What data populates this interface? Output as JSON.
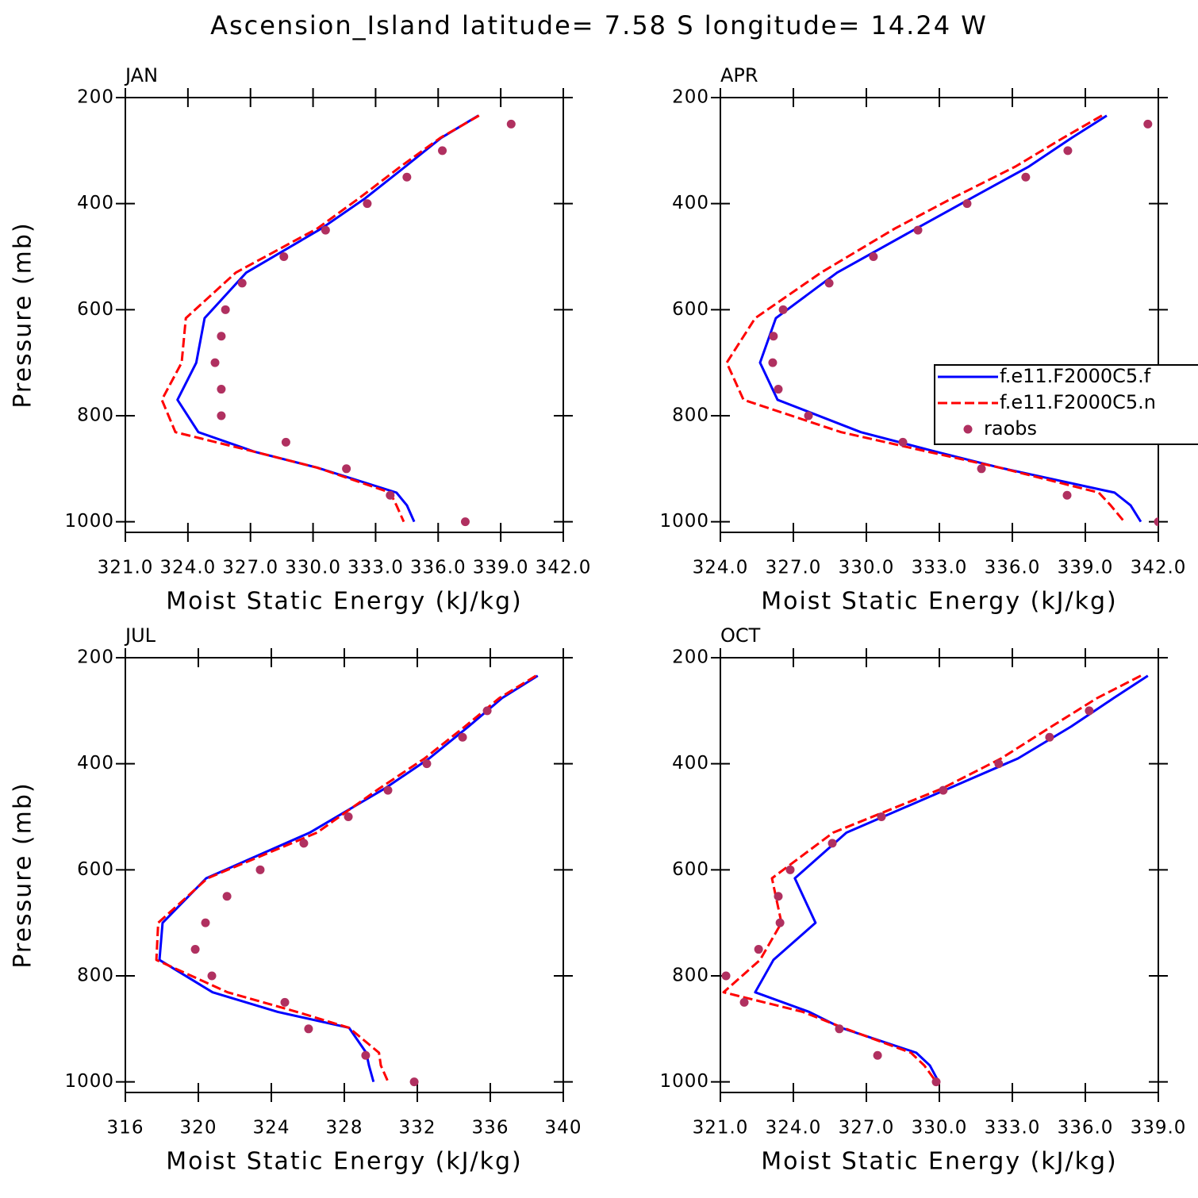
{
  "title": "Ascension_Island  latitude= 7.58 S longitude= 14.24 W",
  "chart_data": [
    {
      "type": "line",
      "title": "JAN",
      "xlabel": "Moist Static Energy (kJ/kg)",
      "ylabel": "Pressure (mb)",
      "xlim": [
        321,
        342
      ],
      "xticks": [
        {
          "value": 321,
          "label": "321.0"
        },
        {
          "value": 324,
          "label": "324.0"
        },
        {
          "value": 327,
          "label": "327.0"
        },
        {
          "value": 330,
          "label": "330.0"
        },
        {
          "value": 333,
          "label": "333.0"
        },
        {
          "value": 336,
          "label": "336.0"
        },
        {
          "value": 339,
          "label": "339.0"
        },
        {
          "value": 342,
          "label": "342.0"
        }
      ],
      "ylim": [
        1020,
        200
      ],
      "yticks": [
        200,
        400,
        600,
        800,
        1000
      ],
      "series": [
        {
          "color": "#0000ff",
          "mode": "solid",
          "x": [
            337.93,
            336.14,
            334.43,
            332.5,
            330.4,
            326.8,
            324.8,
            324.4,
            323.5,
            324.5,
            327.2,
            330.2,
            334.0,
            334.5,
            334.85
          ],
          "y": [
            234,
            276,
            330,
            390,
            447,
            530,
            616,
            700,
            770,
            831,
            868,
            898,
            945,
            969,
            1000
          ]
        },
        {
          "color": "#ff0000",
          "mode": "dashed",
          "x": [
            337.96,
            336.1,
            334.2,
            332.2,
            330.2,
            326.3,
            323.9,
            323.7,
            322.75,
            323.4,
            327.2,
            330.2,
            333.7,
            334.0,
            334.35
          ],
          "y": [
            234,
            276,
            330,
            390,
            447,
            530,
            616,
            700,
            770,
            831,
            868,
            898,
            945,
            969,
            1000
          ]
        },
        {
          "color": "#b03060",
          "mode": "markers",
          "x": [
            339.5,
            336.2,
            334.5,
            332.6,
            330.6,
            328.6,
            326.6,
            325.8,
            325.6,
            325.3,
            325.6,
            325.6,
            328.7,
            331.6,
            333.7,
            337.3
          ],
          "y": [
            250,
            300,
            350,
            400,
            450,
            500,
            550,
            600,
            650,
            700,
            750,
            800,
            850,
            900,
            950,
            1000
          ]
        }
      ]
    },
    {
      "type": "line",
      "title": "APR",
      "xlabel": "Moist Static Energy (kJ/kg)",
      "xlim": [
        324,
        342
      ],
      "xticks": [
        {
          "value": 324,
          "label": "324.0"
        },
        {
          "value": 327,
          "label": "327.0"
        },
        {
          "value": 330,
          "label": "330.0"
        },
        {
          "value": 333,
          "label": "333.0"
        },
        {
          "value": 336,
          "label": "336.0"
        },
        {
          "value": 339,
          "label": "339.0"
        },
        {
          "value": 342,
          "label": "342.0"
        }
      ],
      "ylim": [
        1020,
        200
      ],
      "yticks": [
        200,
        400,
        600,
        800,
        1000
      ],
      "legend": "right",
      "series": [
        {
          "name": "f.e11.F2000C5.f",
          "color": "#0000ff",
          "mode": "solid",
          "x": [
            339.88,
            338.44,
            336.68,
            334.3,
            332.05,
            328.8,
            326.28,
            325.63,
            326.35,
            329.77,
            332.87,
            335.48,
            340.2,
            340.86,
            341.28
          ],
          "y": [
            234,
            276,
            330,
            390,
            447,
            530,
            616,
            700,
            770,
            831,
            868,
            898,
            945,
            969,
            1000
          ]
        },
        {
          "name": "f.e11.F2000C5.n",
          "color": "#ff0000",
          "mode": "dashed",
          "x": [
            339.68,
            338.09,
            336.13,
            333.52,
            331.17,
            328.14,
            325.43,
            324.26,
            324.95,
            328.96,
            332.54,
            335.48,
            339.55,
            340.04,
            340.6
          ],
          "y": [
            234,
            276,
            330,
            390,
            447,
            530,
            616,
            700,
            770,
            831,
            868,
            898,
            945,
            969,
            1000
          ]
        },
        {
          "name": "raobs",
          "color": "#b03060",
          "mode": "markers",
          "x": [
            341.57,
            338.28,
            336.55,
            334.14,
            332.12,
            330.29,
            328.47,
            326.58,
            326.18,
            326.15,
            326.38,
            327.62,
            331.5,
            334.73,
            338.25,
            342.0
          ],
          "y": [
            250,
            300,
            350,
            400,
            450,
            500,
            550,
            600,
            650,
            700,
            750,
            800,
            850,
            900,
            950,
            1000
          ]
        }
      ]
    },
    {
      "type": "line",
      "title": "JUL",
      "xlabel": "Moist Static Energy (kJ/kg)",
      "ylabel": "Pressure (mb)",
      "xlim": [
        316,
        340
      ],
      "xticks": [
        316,
        320,
        324,
        328,
        332,
        336,
        340
      ],
      "ylim": [
        1020,
        200
      ],
      "yticks": [
        200,
        400,
        600,
        800,
        1000
      ],
      "series": [
        {
          "color": "#0000ff",
          "mode": "solid",
          "x": [
            338.6,
            336.65,
            334.8,
            332.65,
            330.2,
            326.1,
            320.43,
            318.04,
            317.87,
            320.78,
            324.35,
            328.26,
            329.2,
            329.35,
            329.6
          ],
          "y": [
            234,
            276,
            330,
            390,
            447,
            530,
            616,
            700,
            770,
            831,
            868,
            898,
            945,
            969,
            1000
          ]
        },
        {
          "color": "#ff0000",
          "mode": "dashed",
          "x": [
            338.5,
            336.5,
            334.6,
            332.4,
            329.9,
            326.5,
            320.5,
            317.8,
            317.7,
            321.6,
            325.4,
            328.26,
            329.9,
            330.0,
            330.4
          ],
          "y": [
            234,
            276,
            330,
            390,
            447,
            530,
            616,
            700,
            770,
            831,
            868,
            898,
            945,
            969,
            1000
          ]
        },
        {
          "color": "#b03060",
          "mode": "markers",
          "x": [
            335.83,
            334.48,
            332.52,
            330.39,
            328.22,
            325.78,
            323.39,
            321.57,
            320.39,
            319.83,
            320.74,
            324.74,
            326.04,
            329.17,
            331.83
          ],
          "y": [
            300,
            350,
            400,
            450,
            500,
            550,
            600,
            650,
            700,
            750,
            800,
            850,
            900,
            950,
            1000
          ]
        }
      ]
    },
    {
      "type": "line",
      "title": "OCT",
      "xlabel": "Moist Static Energy (kJ/kg)",
      "xlim": [
        321,
        339
      ],
      "xticks": [
        {
          "value": 321,
          "label": "321.0"
        },
        {
          "value": 324,
          "label": "324.0"
        },
        {
          "value": 327,
          "label": "327.0"
        },
        {
          "value": 330,
          "label": "330.0"
        },
        {
          "value": 333,
          "label": "333.0"
        },
        {
          "value": 336,
          "label": "336.0"
        },
        {
          "value": 339,
          "label": "339.0"
        }
      ],
      "ylim": [
        1020,
        200
      ],
      "yticks": [
        200,
        400,
        600,
        800,
        1000
      ],
      "series": [
        {
          "color": "#0000ff",
          "mode": "solid",
          "x": [
            338.57,
            337.17,
            335.41,
            333.23,
            330.36,
            326.18,
            324.06,
            324.91,
            323.18,
            322.43,
            324.65,
            325.96,
            329.05,
            329.61,
            329.97
          ],
          "y": [
            234,
            276,
            330,
            390,
            447,
            530,
            616,
            700,
            770,
            831,
            868,
            898,
            945,
            969,
            1000
          ]
        },
        {
          "color": "#ff0000",
          "mode": "dashed",
          "x": [
            338.28,
            336.49,
            334.6,
            332.54,
            330.1,
            325.63,
            323.12,
            323.51,
            322.63,
            321.13,
            324.39,
            326.05,
            328.83,
            329.38,
            329.87
          ],
          "y": [
            234,
            276,
            330,
            390,
            447,
            530,
            616,
            700,
            770,
            831,
            868,
            898,
            945,
            969,
            1000
          ]
        },
        {
          "color": "#b03060",
          "mode": "markers",
          "x": [
            336.16,
            334.53,
            332.44,
            330.16,
            327.62,
            325.6,
            323.87,
            323.38,
            323.45,
            322.57,
            321.23,
            321.98,
            325.89,
            327.46,
            329.87
          ],
          "y": [
            300,
            350,
            400,
            450,
            500,
            550,
            600,
            650,
            700,
            750,
            800,
            850,
            900,
            950,
            1000
          ]
        }
      ]
    }
  ]
}
